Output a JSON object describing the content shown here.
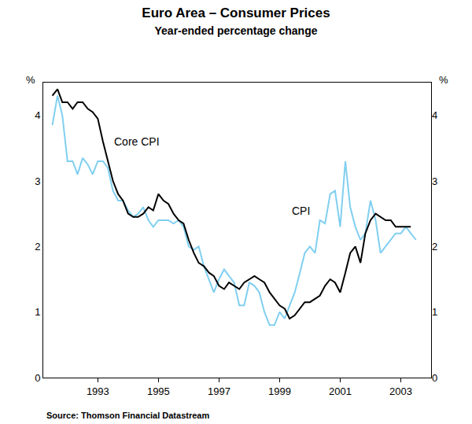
{
  "chart_data": {
    "type": "line",
    "title": "Euro Area – Consumer Prices",
    "subtitle": "Year-ended percentage change",
    "y_label": "%",
    "source": "Source: Thomson Financial Datastream",
    "x": [
      1991.5,
      1991.67,
      1991.83,
      1992,
      1992.17,
      1992.33,
      1992.5,
      1992.67,
      1992.83,
      1993,
      1993.17,
      1993.33,
      1993.5,
      1993.67,
      1993.83,
      1994,
      1994.17,
      1994.33,
      1994.5,
      1994.67,
      1994.83,
      1995,
      1995.17,
      1995.33,
      1995.5,
      1995.67,
      1995.83,
      1996,
      1996.17,
      1996.33,
      1996.5,
      1996.67,
      1996.83,
      1997,
      1997.17,
      1997.33,
      1997.5,
      1997.67,
      1997.83,
      1998,
      1998.17,
      1998.33,
      1998.5,
      1998.67,
      1998.83,
      1999,
      1999.17,
      1999.33,
      1999.5,
      1999.67,
      1999.83,
      2000,
      2000.17,
      2000.33,
      2000.5,
      2000.67,
      2000.83,
      2001,
      2001.17,
      2001.33,
      2001.5,
      2001.67,
      2001.83,
      2002,
      2002.17,
      2002.33,
      2002.5,
      2002.67,
      2002.83,
      2003,
      2003.17,
      2003.33,
      2003.5
    ],
    "series": [
      {
        "name": "Core CPI",
        "color": "#000000",
        "values": [
          4.3,
          4.4,
          4.2,
          4.2,
          4.1,
          4.2,
          4.2,
          4.1,
          4.05,
          3.95,
          3.6,
          3.3,
          3.0,
          2.8,
          2.7,
          2.5,
          2.45,
          2.45,
          2.5,
          2.6,
          2.55,
          2.8,
          2.7,
          2.65,
          2.5,
          2.4,
          2.35,
          2.1,
          1.9,
          1.75,
          1.7,
          1.6,
          1.55,
          1.4,
          1.35,
          1.45,
          1.4,
          1.35,
          1.45,
          1.5,
          1.55,
          1.5,
          1.45,
          1.3,
          1.2,
          1.1,
          1.05,
          0.9,
          0.95,
          1.05,
          1.15,
          1.15,
          1.2,
          1.25,
          1.4,
          1.5,
          1.45,
          1.3,
          1.6,
          1.9,
          2.0,
          1.75,
          2.2,
          2.4,
          2.5,
          2.45,
          2.4,
          2.4,
          2.3,
          2.3,
          2.3,
          2.3,
          null
        ]
      },
      {
        "name": "CPI",
        "color": "#80cff0",
        "values": [
          3.85,
          4.3,
          4.0,
          3.3,
          3.3,
          3.1,
          3.35,
          3.25,
          3.1,
          3.3,
          3.3,
          3.2,
          2.85,
          2.7,
          2.7,
          2.55,
          2.45,
          2.5,
          2.6,
          2.4,
          2.3,
          2.4,
          2.4,
          2.4,
          2.35,
          2.4,
          2.3,
          2.0,
          1.95,
          2.0,
          1.7,
          1.5,
          1.3,
          1.5,
          1.65,
          1.55,
          1.45,
          1.1,
          1.1,
          1.45,
          1.4,
          1.3,
          1.0,
          0.8,
          0.8,
          1.0,
          0.9,
          1.1,
          1.3,
          1.6,
          1.9,
          2.0,
          1.9,
          2.4,
          2.35,
          2.8,
          2.85,
          2.3,
          3.3,
          2.6,
          2.3,
          2.1,
          2.2,
          2.7,
          2.4,
          1.9,
          2.0,
          2.1,
          2.2,
          2.2,
          2.3,
          2.2,
          2.1
        ]
      }
    ],
    "xlim": [
      1991.2,
      2004.0
    ],
    "xticks": [
      1993,
      1995,
      1997,
      1999,
      2001,
      2003
    ],
    "ylim": [
      0,
      4.5
    ],
    "yticks": [
      0,
      1,
      2,
      3,
      4
    ],
    "y2lim": [
      0,
      4.5
    ],
    "y2ticks": [
      0,
      1,
      2,
      3,
      4
    ],
    "grid": false,
    "annotations": [
      {
        "text": "Core CPI",
        "x": 1994.3,
        "y": 3.6
      },
      {
        "text": "CPI",
        "x": 1999.7,
        "y": 2.55
      }
    ]
  }
}
